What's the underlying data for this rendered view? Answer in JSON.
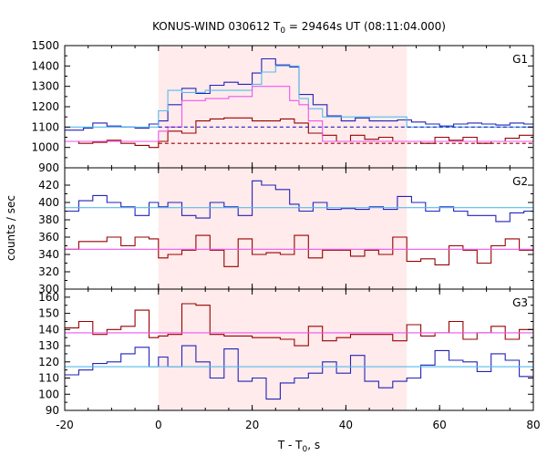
{
  "figure": {
    "title_pre": "KONUS-WIND 030612 T",
    "title_sub": "0",
    "title_post": " = 29464s UT (08:11:04.000)",
    "ylabel": "counts / sec",
    "xlabel_pre": "T - T",
    "xlabel_sub": "0",
    "xlabel_post": ", s"
  },
  "colors": {
    "shade": "#ffebeb",
    "red": "#990000",
    "blue": "#2222bb",
    "cyan": "#55bbee",
    "pink": "#ee55ee"
  },
  "chart_data": [
    {
      "type": "line",
      "panel": "G1",
      "label": "G1",
      "xlim": [
        -20,
        80
      ],
      "ylim": [
        900,
        1500
      ],
      "yticks": [
        900,
        1000,
        1100,
        1200,
        1300,
        1400,
        1500
      ],
      "shaded_interval": [
        0,
        53
      ],
      "series": [
        {
          "color": "blue",
          "style": "step",
          "x": [
            -20,
            -16,
            -14,
            -11,
            -8,
            -5,
            -2,
            0,
            2,
            5,
            8,
            11,
            14,
            17,
            20,
            22,
            25,
            28,
            30,
            33,
            36,
            39,
            42,
            45,
            48,
            51,
            54,
            57,
            60,
            63,
            66,
            69,
            72,
            75,
            78,
            80
          ],
          "y": [
            1085,
            1095,
            1120,
            1105,
            1100,
            1095,
            1115,
            1130,
            1210,
            1290,
            1265,
            1305,
            1320,
            1310,
            1365,
            1435,
            1405,
            1395,
            1260,
            1210,
            1155,
            1130,
            1145,
            1130,
            1130,
            1135,
            1125,
            1115,
            1105,
            1115,
            1120,
            1115,
            1110,
            1120,
            1115,
            1120
          ]
        },
        {
          "color": "red",
          "style": "step",
          "x": [
            -20,
            -17,
            -14,
            -11,
            -8,
            -5,
            -2,
            0,
            2,
            5,
            8,
            11,
            14,
            17,
            20,
            23,
            26,
            29,
            32,
            35,
            38,
            41,
            44,
            47,
            50,
            53,
            56,
            59,
            62,
            65,
            68,
            71,
            74,
            77,
            80
          ],
          "y": [
            1030,
            1020,
            1025,
            1035,
            1020,
            1010,
            1000,
            1030,
            1080,
            1070,
            1130,
            1140,
            1145,
            1145,
            1130,
            1130,
            1140,
            1120,
            1070,
            1060,
            1030,
            1060,
            1040,
            1050,
            1030,
            1030,
            1020,
            1050,
            1035,
            1050,
            1020,
            1030,
            1045,
            1060,
            1050
          ]
        },
        {
          "color": "cyan",
          "style": "step",
          "x": [
            -20,
            0,
            2,
            5,
            10,
            15,
            20,
            22,
            25,
            28,
            30,
            32,
            35,
            53,
            80
          ],
          "y": [
            1100,
            1180,
            1280,
            1270,
            1280,
            1280,
            1310,
            1370,
            1400,
            1400,
            1240,
            1190,
            1150,
            1100,
            1100
          ]
        },
        {
          "color": "pink",
          "style": "step",
          "x": [
            -20,
            0,
            2,
            5,
            10,
            15,
            20,
            25,
            28,
            30,
            32,
            35,
            53,
            80
          ],
          "y": [
            1030,
            1080,
            1100,
            1230,
            1240,
            1250,
            1300,
            1300,
            1230,
            1210,
            1130,
            1030,
            1030,
            1030
          ]
        },
        {
          "color": "blue",
          "style": "dashed",
          "x": [
            0,
            80
          ],
          "y": [
            1100,
            1100
          ]
        },
        {
          "color": "red",
          "style": "dashed",
          "x": [
            0,
            80
          ],
          "y": [
            1020,
            1020
          ]
        }
      ]
    },
    {
      "type": "line",
      "panel": "G2",
      "label": "G2",
      "xlim": [
        -20,
        80
      ],
      "ylim": [
        300,
        440
      ],
      "yticks": [
        300,
        320,
        340,
        360,
        380,
        400,
        420
      ],
      "shaded_interval": [
        0,
        53
      ],
      "series": [
        {
          "color": "blue",
          "style": "step",
          "x": [
            -20,
            -17,
            -14,
            -11,
            -8,
            -5,
            -2,
            0,
            2,
            5,
            8,
            11,
            14,
            17,
            20,
            22,
            25,
            28,
            30,
            33,
            36,
            39,
            42,
            45,
            48,
            51,
            54,
            57,
            60,
            63,
            66,
            69,
            72,
            75,
            78,
            80
          ],
          "y": [
            390,
            402,
            408,
            400,
            395,
            385,
            400,
            395,
            400,
            385,
            382,
            400,
            395,
            385,
            425,
            420,
            415,
            398,
            390,
            400,
            392,
            393,
            392,
            395,
            392,
            407,
            400,
            390,
            395,
            390,
            385,
            385,
            378,
            388,
            390,
            388
          ]
        },
        {
          "color": "red",
          "style": "step",
          "x": [
            -20,
            -17,
            -14,
            -11,
            -8,
            -5,
            -2,
            0,
            2,
            5,
            8,
            11,
            14,
            17,
            20,
            23,
            26,
            29,
            32,
            35,
            38,
            41,
            44,
            47,
            50,
            53,
            56,
            59,
            62,
            65,
            68,
            71,
            74,
            77,
            80
          ],
          "y": [
            346,
            355,
            355,
            360,
            350,
            360,
            358,
            336,
            340,
            345,
            362,
            345,
            326,
            358,
            340,
            342,
            340,
            362,
            336,
            345,
            345,
            338,
            345,
            340,
            360,
            332,
            335,
            328,
            350,
            345,
            330,
            350,
            358,
            345,
            350
          ]
        },
        {
          "color": "cyan",
          "style": "line",
          "x": [
            -20,
            80
          ],
          "y": [
            394,
            394
          ]
        },
        {
          "color": "pink",
          "style": "line",
          "x": [
            -20,
            80
          ],
          "y": [
            346,
            346
          ]
        }
      ]
    },
    {
      "type": "line",
      "panel": "G3",
      "label": "G3",
      "xlim": [
        -20,
        80
      ],
      "ylim": [
        90,
        165
      ],
      "yticks": [
        90,
        100,
        110,
        120,
        130,
        140,
        150,
        160
      ],
      "shaded_interval": [
        0,
        53
      ],
      "series": [
        {
          "color": "red",
          "style": "step",
          "x": [
            -20,
            -17,
            -14,
            -11,
            -8,
            -5,
            -2,
            0,
            2,
            5,
            8,
            11,
            14,
            17,
            20,
            23,
            26,
            29,
            32,
            35,
            38,
            41,
            44,
            47,
            50,
            53,
            56,
            59,
            62,
            65,
            68,
            71,
            74,
            77,
            80
          ],
          "y": [
            141,
            145,
            137,
            140,
            142,
            152,
            135,
            136,
            137,
            156,
            155,
            137,
            136,
            136,
            135,
            135,
            134,
            130,
            142,
            133,
            135,
            137,
            137,
            137,
            133,
            143,
            136,
            138,
            145,
            134,
            138,
            142,
            134,
            140,
            131
          ]
        },
        {
          "color": "blue",
          "style": "step",
          "x": [
            -20,
            -17,
            -14,
            -11,
            -8,
            -5,
            -2,
            0,
            2,
            5,
            8,
            11,
            14,
            17,
            20,
            23,
            26,
            29,
            32,
            35,
            38,
            41,
            44,
            47,
            50,
            53,
            56,
            59,
            62,
            65,
            68,
            71,
            74,
            77,
            80
          ],
          "y": [
            112,
            115,
            119,
            120,
            125,
            129,
            117,
            123,
            117,
            130,
            120,
            110,
            128,
            108,
            110,
            97,
            107,
            110,
            113,
            120,
            113,
            124,
            108,
            104,
            108,
            110,
            118,
            127,
            121,
            120,
            114,
            125,
            121,
            111,
            124
          ]
        },
        {
          "color": "cyan",
          "style": "line",
          "x": [
            -20,
            80
          ],
          "y": [
            117,
            117
          ]
        },
        {
          "color": "pink",
          "style": "line",
          "x": [
            -20,
            80
          ],
          "y": [
            138,
            138
          ]
        }
      ]
    }
  ],
  "xaxis": {
    "ticks": [
      -20,
      0,
      20,
      40,
      60,
      80
    ],
    "minor_step": 5
  }
}
